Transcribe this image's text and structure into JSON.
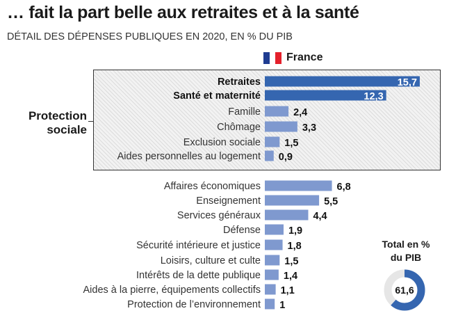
{
  "title": "… fait la part belle aux retraites et à la santé",
  "subtitle": "DÉTAIL DES DÉPENSES PUBLIQUES EN 2020, EN % DU PIB",
  "legend": {
    "label": "France",
    "flag_colors": [
      "#1f3c91",
      "#ffffff",
      "#e4202b"
    ]
  },
  "group_label_line1": "Protection",
  "group_label_line2": "sociale",
  "colors": {
    "highlight": "#3566b0",
    "regular": "#7f99cf",
    "donut_filled": "#3566b0",
    "donut_rest": "#e6e6e6"
  },
  "chart_data": {
    "type": "bar",
    "orientation": "horizontal",
    "title": "… fait la part belle aux retraites et à la santé",
    "subtitle": "DÉTAIL DES DÉPENSES PUBLIQUES EN 2020, EN % DU PIB",
    "unit": "% du PIB",
    "series_name": "France",
    "categories": [
      "Retraites",
      "Santé et maternité",
      "Famille",
      "Chômage",
      "Exclusion sociale",
      "Aides personnelles au logement",
      "Affaires économiques",
      "Enseignement",
      "Services généraux",
      "Défense",
      "Sécurité intérieure et justice",
      "Loisirs, culture et culte",
      "Intérêts de la dette publique",
      "Aides à la pierre, équipements collectifs",
      "Protection de l’environnement"
    ],
    "values": [
      15.7,
      12.3,
      2.4,
      3.3,
      1.5,
      0.9,
      6.8,
      5.5,
      4.4,
      1.9,
      1.8,
      1.5,
      1.4,
      1.1,
      1.0
    ],
    "value_labels": [
      "15,7",
      "12,3",
      "2,4",
      "3,3",
      "1,5",
      "0,9",
      "6,8",
      "5,5",
      "4,4",
      "1,9",
      "1,8",
      "1,5",
      "1,4",
      "1,1",
      "1"
    ],
    "highlighted": [
      true,
      true,
      false,
      false,
      false,
      false,
      false,
      false,
      false,
      false,
      false,
      false,
      false,
      false,
      false
    ],
    "groups": [
      {
        "label": "Protection sociale",
        "categories": [
          "Retraites",
          "Santé et maternité",
          "Famille",
          "Chômage",
          "Exclusion sociale",
          "Aides personnelles au logement"
        ]
      }
    ],
    "xlim": [
      0,
      16
    ],
    "grid": false
  },
  "total": {
    "label_line1": "Total en %",
    "label_line2": "du PIB",
    "value": 61.6,
    "value_label": "61,6",
    "max": 100
  }
}
